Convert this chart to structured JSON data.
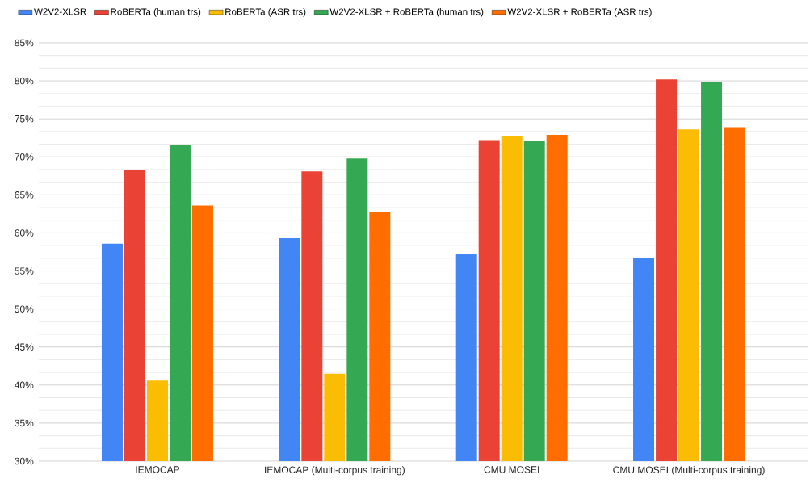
{
  "chart_data": {
    "type": "bar",
    "categories": [
      "IEMOCAP",
      "IEMOCAP (Multi-corpus training)",
      "CMU MOSEI",
      "CMU MOSEI (Multi-corpus training)"
    ],
    "series": [
      {
        "name": "W2V2-XLSR",
        "color": "#4285f4",
        "values": [
          58.6,
          59.3,
          57.2,
          56.7
        ]
      },
      {
        "name": "RoBERTa (human trs)",
        "color": "#ea4335",
        "values": [
          68.3,
          68.1,
          72.2,
          80.2
        ]
      },
      {
        "name": "RoBERTa (ASR trs)",
        "color": "#fbbc04",
        "values": [
          40.6,
          41.5,
          72.7,
          73.6
        ]
      },
      {
        "name": "W2V2-XLSR + RoBERTa (human trs)",
        "color": "#34a853",
        "values": [
          71.6,
          69.8,
          72.1,
          79.9
        ]
      },
      {
        "name": "W2V2-XLSR + RoBERTa (ASR trs)",
        "color": "#ff6d01",
        "values": [
          63.6,
          62.8,
          72.9,
          73.9
        ]
      }
    ],
    "ylim": [
      30,
      85
    ],
    "yticks": [
      {
        "value": 30,
        "label": "30%"
      },
      {
        "value": 35,
        "label": "35%"
      },
      {
        "value": 40,
        "label": "40%"
      },
      {
        "value": 45,
        "label": "45%"
      },
      {
        "value": 50,
        "label": "50%"
      },
      {
        "value": 55,
        "label": "55%"
      },
      {
        "value": 60,
        "label": "60%"
      },
      {
        "value": 65,
        "label": "65%"
      },
      {
        "value": 70,
        "label": "70%"
      },
      {
        "value": 75,
        "label": "75%"
      },
      {
        "value": 80,
        "label": "80%"
      },
      {
        "value": 85,
        "label": "85%"
      }
    ],
    "grid": "y",
    "legend": "top left"
  }
}
